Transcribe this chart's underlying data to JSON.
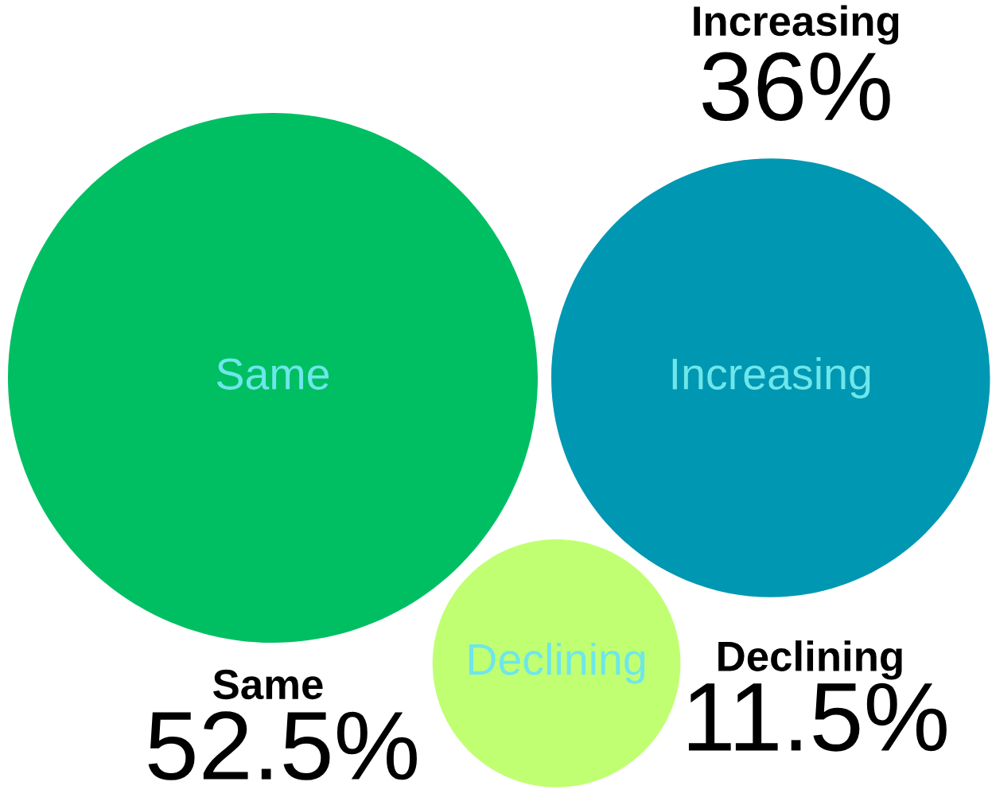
{
  "chart_data": {
    "type": "other",
    "categories": [
      "Same",
      "Increasing",
      "Declining"
    ],
    "values": [
      52.5,
      36,
      11.5
    ],
    "colors": [
      "#00bf63",
      "#0097b2",
      "#c1ff72"
    ],
    "value_labels": [
      "52.5%",
      "36%",
      "11.5%"
    ]
  }
}
